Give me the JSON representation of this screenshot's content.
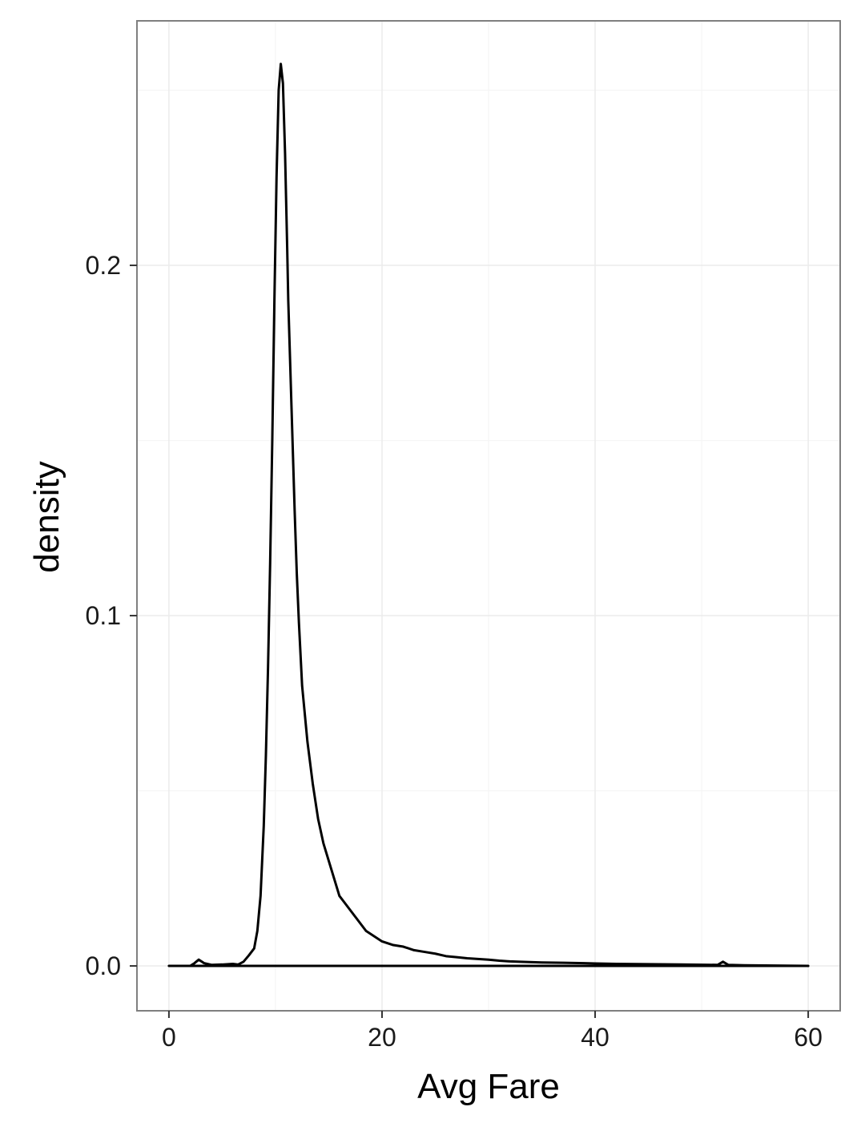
{
  "chart_data": {
    "type": "line",
    "title": "",
    "xlabel": "Avg Fare",
    "ylabel": "density",
    "xlim": [
      -3,
      63
    ],
    "ylim": [
      -0.0128,
      0.2698
    ],
    "xticks": [
      0,
      20,
      40,
      60
    ],
    "xtick_labels": [
      "0",
      "20",
      "40",
      "60"
    ],
    "yticks": [
      0.0,
      0.1,
      0.2
    ],
    "ytick_labels": [
      "0.0",
      "0.1",
      "0.2"
    ],
    "grid": true,
    "legend": "none",
    "colors": {
      "line": "#000000",
      "grid": "#ebebeb",
      "panel_border": "#7f7f7f",
      "background": "#ffffff"
    },
    "series": [
      {
        "x": [
          0,
          2,
          2.4,
          2.8,
          3.3,
          4,
          5,
          6,
          6.5,
          7,
          7.5,
          8,
          8.3,
          8.6,
          8.9,
          9.1,
          9.3,
          9.5,
          9.7,
          9.9,
          10.1,
          10.3,
          10.5,
          10.7,
          10.9,
          11.1,
          11.2,
          11.4,
          11.6,
          11.8,
          12.0,
          12.2,
          12.5,
          13.0,
          13.5,
          14.0,
          14.5,
          15.0,
          15.5,
          16.0,
          16.5,
          17.0,
          17.5,
          18.0,
          18.5,
          19.0,
          19.5,
          20.0,
          21.0,
          22.0,
          23.0,
          24.0,
          25.0,
          26.0,
          27.0,
          28.0,
          29.0,
          30.0,
          31.0,
          32.0,
          33.0,
          35.0,
          37.0,
          39.0,
          40.0,
          42.0,
          45.0,
          48.0,
          51.5,
          52.0,
          52.5,
          54.0,
          57.0,
          60.0
        ],
        "y": [
          0,
          0,
          0.0008,
          0.0018,
          0.0008,
          0.0003,
          0.0004,
          0.0006,
          0.0004,
          0.0012,
          0.003,
          0.005,
          0.01,
          0.02,
          0.04,
          0.06,
          0.085,
          0.115,
          0.15,
          0.19,
          0.225,
          0.25,
          0.2575,
          0.252,
          0.232,
          0.205,
          0.19,
          0.17,
          0.15,
          0.13,
          0.112,
          0.098,
          0.08,
          0.064,
          0.052,
          0.042,
          0.035,
          0.03,
          0.025,
          0.02,
          0.018,
          0.016,
          0.014,
          0.012,
          0.01,
          0.009,
          0.008,
          0.007,
          0.006,
          0.0055,
          0.0045,
          0.004,
          0.0035,
          0.0028,
          0.0025,
          0.0022,
          0.002,
          0.0018,
          0.0015,
          0.0013,
          0.0012,
          0.001,
          0.0009,
          0.0008,
          0.0007,
          0.0006,
          0.0005,
          0.0004,
          0.0003,
          0.0012,
          0.0003,
          0.0002,
          0.0001,
          0
        ]
      }
    ]
  }
}
